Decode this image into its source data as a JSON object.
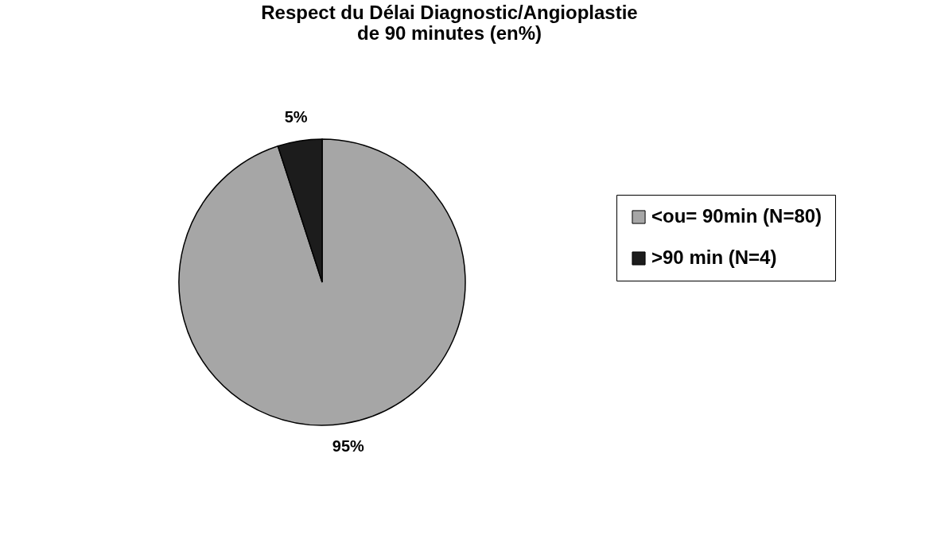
{
  "chart_data": {
    "type": "pie",
    "title": [
      "Respect du Délai Diagnostic/Angioplastie",
      "de 90 minutes (en%)"
    ],
    "categories": [
      "<ou= 90min (N=80)",
      ">90 min (N=4)"
    ],
    "values": [
      95,
      5
    ],
    "colors": [
      "#a6a6a6",
      "#1c1c1c"
    ],
    "value_labels": [
      "95%",
      "5%"
    ],
    "legend": "right"
  }
}
